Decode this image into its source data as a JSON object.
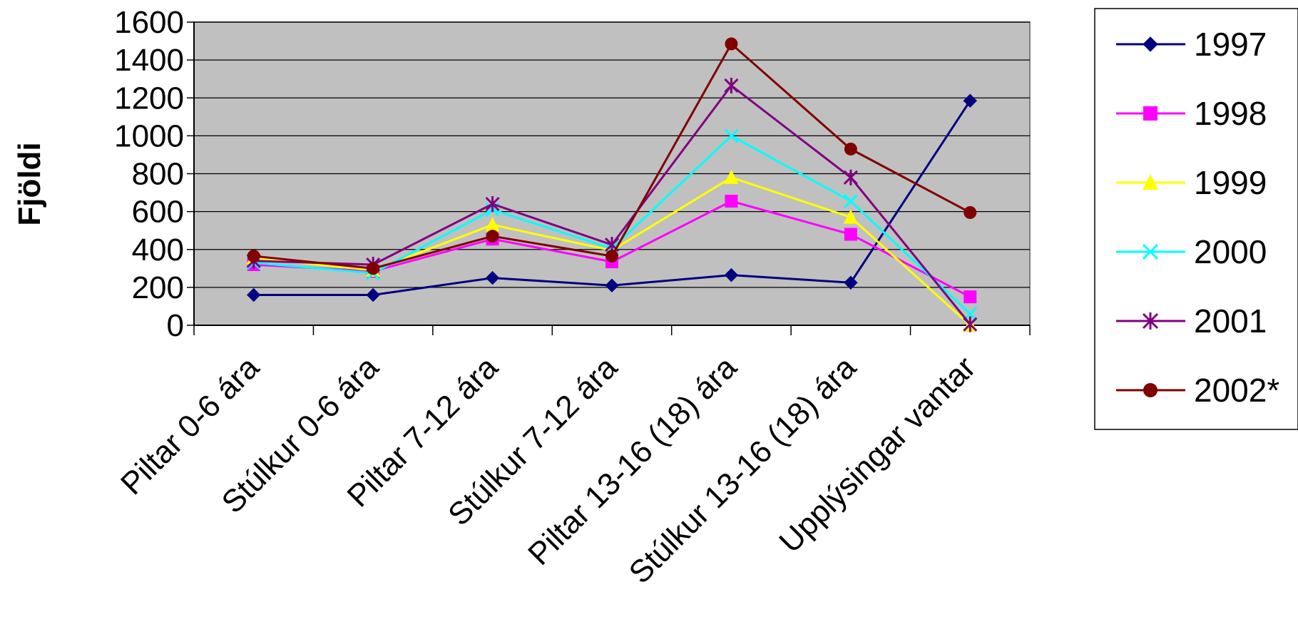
{
  "chart_data": {
    "type": "line",
    "ylabel": "Fjöldi",
    "xlabel": "",
    "ylim": [
      0,
      1600
    ],
    "yticks": [
      0,
      200,
      400,
      600,
      800,
      1000,
      1200,
      1400,
      1600
    ],
    "grid": "horizontal",
    "plot_background": "#c0c0c0",
    "legend_position": "right",
    "categories": [
      "Piltar 0-6 ára",
      "Stúlkur 0-6 ára",
      "Piltar 7-12 ára",
      "Stúlkur 7-12 ára",
      "Piltar 13-16 (18) ára",
      "Stúlkur 13-16 (18) ára",
      "Upplýsingar vantar"
    ],
    "series": [
      {
        "name": "1997",
        "color": "#000080",
        "marker": "diamond",
        "values": [
          160,
          160,
          250,
          210,
          265,
          225,
          1185
        ]
      },
      {
        "name": "1998",
        "color": "#ff00ff",
        "marker": "square",
        "values": [
          320,
          285,
          455,
          335,
          655,
          480,
          150
        ]
      },
      {
        "name": "1999",
        "color": "#ffff00",
        "marker": "triangle",
        "values": [
          355,
          290,
          530,
          395,
          780,
          570,
          0
        ]
      },
      {
        "name": "2000",
        "color": "#00ffff",
        "marker": "x",
        "values": [
          330,
          275,
          610,
          405,
          1000,
          655,
          60
        ]
      },
      {
        "name": "2001",
        "color": "#800080",
        "marker": "star",
        "values": [
          340,
          320,
          640,
          425,
          1265,
          780,
          5
        ]
      },
      {
        "name": "2002*",
        "color": "#800000",
        "marker": "circle",
        "values": [
          365,
          300,
          470,
          365,
          1485,
          930,
          595
        ]
      }
    ]
  }
}
